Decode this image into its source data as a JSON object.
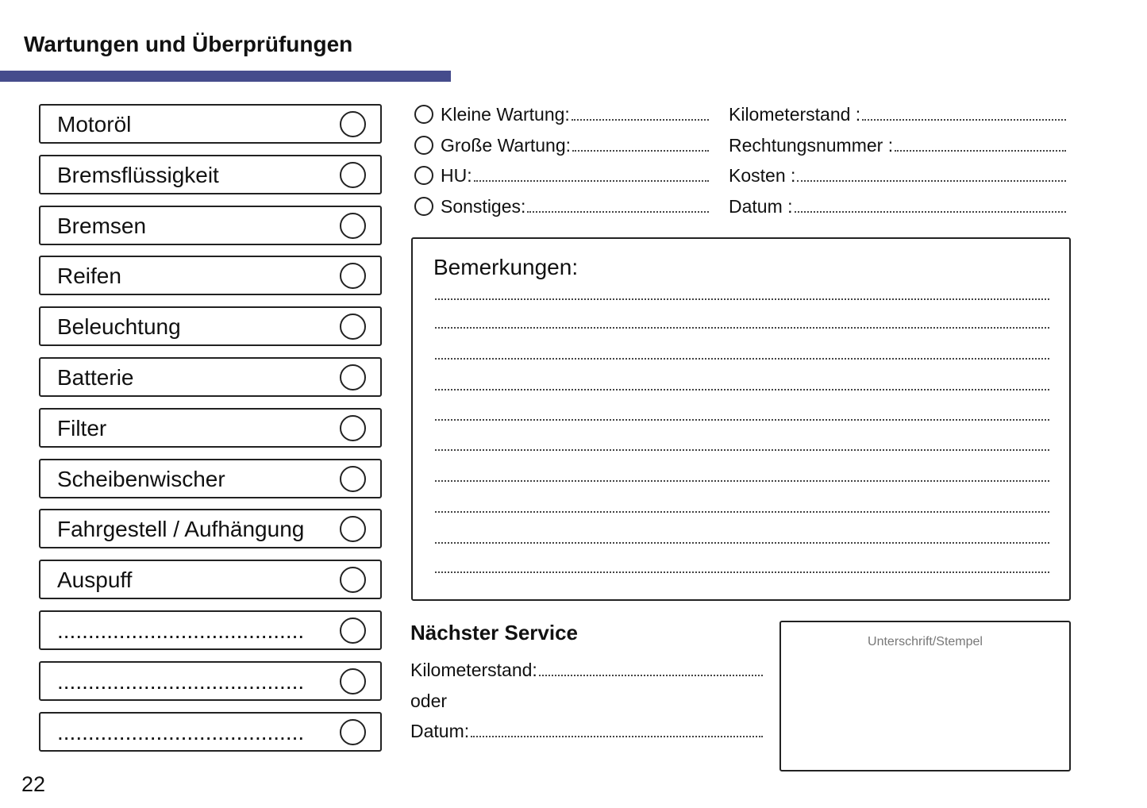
{
  "header": {
    "title": "Wartungen und Überprüfungen",
    "accent_color": "#454c8c"
  },
  "checklist": [
    "Motoröl",
    "Bremsflüssigkeit",
    "Bremsen",
    "Reifen",
    "Beleuchtung",
    "Batterie",
    "Filter",
    "Scheibenwischer",
    "Fahrgestell / Aufhängung",
    "Auspuff",
    "........................................",
    "........................................",
    "........................................"
  ],
  "service_types": [
    "Kleine Wartung:",
    "Große Wartung:",
    "HU:",
    "Sonstiges:"
  ],
  "details": [
    "Kilometerstand :",
    "Rechtungsnummer :",
    "Kosten :",
    "Datum :"
  ],
  "remarks": {
    "title": "Bemerkungen:"
  },
  "next_service": {
    "title": "Nächster Service",
    "kilometer_label": "Kilometerstand:",
    "or_label": "oder",
    "date_label": "Datum:"
  },
  "signature": {
    "label": "Unterschrift/Stempel"
  },
  "page_number": "22"
}
